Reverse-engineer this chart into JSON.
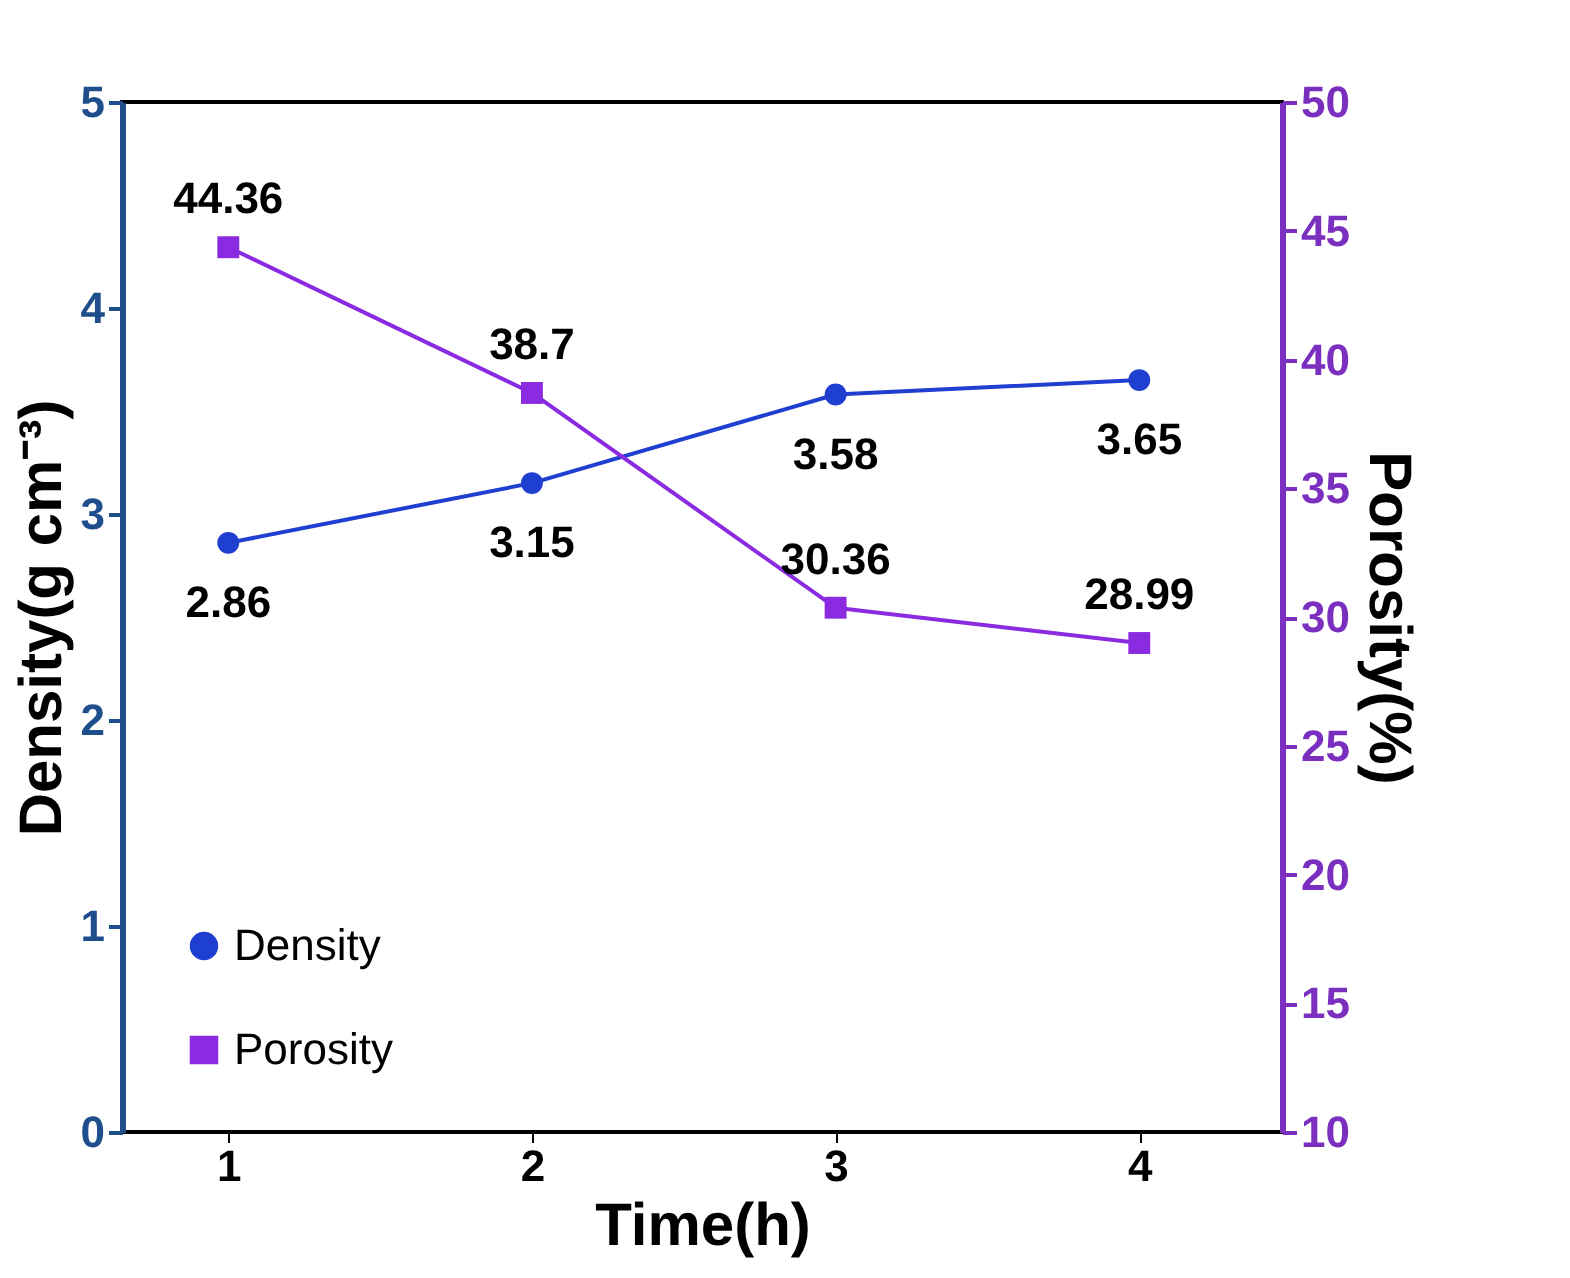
{
  "chart_data": {
    "type": "line",
    "xlabel": "Time(h)",
    "ylabel": "Density(g cm⁻³)",
    "y2label": "Porosity(%)",
    "x": [
      1,
      2,
      3,
      4
    ],
    "series": [
      {
        "name": "Density",
        "color": "#1f3fd0",
        "values": [
          2.86,
          3.15,
          3.58,
          3.65
        ],
        "marker": "circle"
      },
      {
        "name": "Porosity",
        "color": "#8a2be2",
        "values": [
          44.36,
          38.7,
          30.36,
          28.99
        ],
        "axis": "y2",
        "marker": "square"
      }
    ],
    "xlim": [
      0.65,
      4.47
    ],
    "xticks": [
      1,
      2,
      3,
      4
    ],
    "ylim": [
      0,
      5
    ],
    "yticks": [
      0,
      1,
      2,
      3,
      4,
      5
    ],
    "y2lim": [
      10,
      50
    ],
    "y2ticks": [
      10,
      15,
      20,
      25,
      30,
      35,
      40,
      45,
      50
    ],
    "data_labels": true,
    "grid": false,
    "legend": "bottom left"
  }
}
